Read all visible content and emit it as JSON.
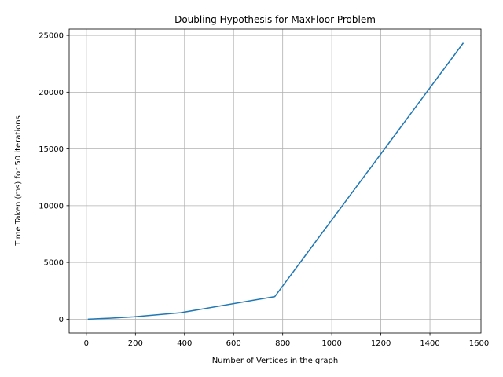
{
  "chart_data": {
    "type": "line",
    "title": "Doubling Hypothesis for MaxFloor Problem",
    "xlabel": "Number of Vertices in the graph",
    "ylabel": "Time Taken (ms) for 50 iterations",
    "xlim": [
      -70,
      1608
    ],
    "ylim": [
      -1220,
      25560
    ],
    "xticks": [
      0,
      200,
      400,
      600,
      800,
      1000,
      1200,
      1400,
      1600
    ],
    "yticks": [
      0,
      5000,
      10000,
      15000,
      20000,
      25000
    ],
    "grid": true,
    "series": [
      {
        "color": "#1f77b4",
        "x": [
          6,
          12,
          24,
          48,
          96,
          192,
          384,
          768,
          1536
        ],
        "y": [
          0,
          10,
          20,
          40,
          90,
          210,
          570,
          1990,
          24340
        ]
      }
    ]
  }
}
